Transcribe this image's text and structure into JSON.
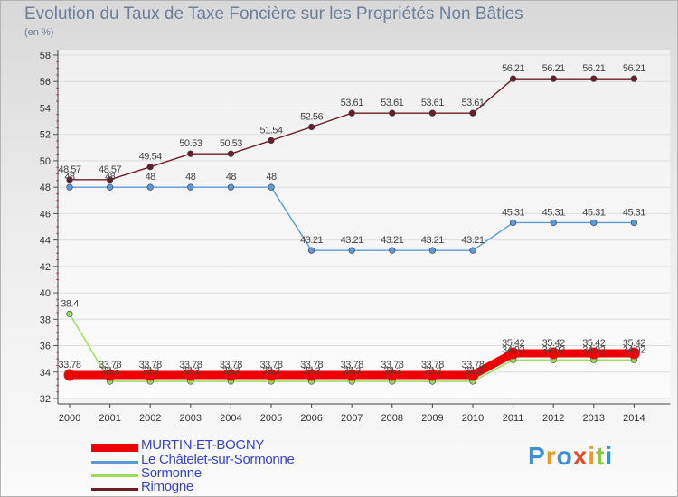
{
  "title": "Evolution du Taux de Taxe Foncière sur les Propriétés Non Bâties",
  "unit_label": "(en %)",
  "chart_data": {
    "type": "line",
    "title": "Evolution du Taux de Taxe Foncière sur les Propriétés Non Bâties",
    "ylabel": "(en %)",
    "xlabel": "",
    "ylim": [
      32,
      58
    ],
    "yticks": [
      "32",
      "34",
      "36",
      "38",
      "40",
      "42",
      "44",
      "46",
      "48",
      "50",
      "52",
      "54",
      "56",
      "58"
    ],
    "categories": [
      "2000",
      "2001",
      "2002",
      "2003",
      "2004",
      "2005",
      "2006",
      "2007",
      "2008",
      "2009",
      "2010",
      "2011",
      "2012",
      "2013",
      "2014"
    ],
    "series": [
      {
        "name": "Rimogne",
        "color": "#6b1f24",
        "values": [
          48.57,
          48.57,
          49.54,
          50.53,
          50.53,
          51.54,
          52.56,
          53.61,
          53.61,
          53.61,
          53.61,
          56.21,
          56.21,
          56.21,
          56.21
        ],
        "labels": [
          "48.57",
          "48.57",
          "49.54",
          "50.53",
          "50.53",
          "51.54",
          "52.56",
          "53.61",
          "53.61",
          "53.61",
          "53.61",
          "56.21",
          "56.21",
          "56.21",
          "56.21"
        ]
      },
      {
        "name": "Le Châtelet-sur-Sormonne",
        "color": "#5b9bd5",
        "values": [
          48,
          48,
          48,
          48,
          48,
          48,
          43.21,
          43.21,
          43.21,
          43.21,
          43.21,
          45.31,
          45.31,
          45.31,
          45.31
        ],
        "labels": [
          "48",
          "48",
          "48",
          "48",
          "48",
          "48",
          "43.21",
          "43.21",
          "43.21",
          "43.21",
          "43.21",
          "45.31",
          "45.31",
          "45.31",
          "45.31"
        ]
      },
      {
        "name": "Sormonne",
        "color": "#99dd55",
        "values": [
          38.4,
          33.3,
          33.3,
          33.3,
          33.3,
          33.3,
          33.3,
          33.3,
          33.3,
          33.3,
          33.3,
          34.92,
          34.92,
          34.92,
          34.92
        ],
        "labels": [
          "38.4",
          "33.3",
          "33.3",
          "33.3",
          "33.3",
          "33.3",
          "33.3",
          "33.3",
          "33.3",
          "33.3",
          "33.3",
          "34.92",
          "34.92",
          "34.92",
          "34.92"
        ]
      },
      {
        "name": "MURTIN-ET-BOGNY",
        "color": "#ee0000",
        "values": [
          33.78,
          33.78,
          33.78,
          33.78,
          33.78,
          33.78,
          33.78,
          33.78,
          33.78,
          33.78,
          33.78,
          35.42,
          35.42,
          35.42,
          35.42
        ],
        "labels": [
          "33.78",
          "33.78",
          "33.78",
          "33.78",
          "33.78",
          "33.78",
          "33.78",
          "33.78",
          "33.78",
          "33.78",
          "33.78",
          "35.42",
          "35.42",
          "35.42",
          "35.42"
        ]
      }
    ],
    "legend": [
      "MURTIN-ET-BOGNY",
      "Le Châtelet-sur-Sormonne",
      "Sormonne",
      "Rimogne"
    ],
    "legend_position": "bottom-left"
  },
  "logo": {
    "letters": [
      "P",
      "r",
      "o",
      "x",
      "i",
      "t",
      "i"
    ],
    "colors": [
      "#3a8fd6",
      "#f39a1d",
      "#3a8fd6",
      "#e84a2a",
      "#f39a1d",
      "#8cc63f",
      "#3a8fd6"
    ]
  }
}
